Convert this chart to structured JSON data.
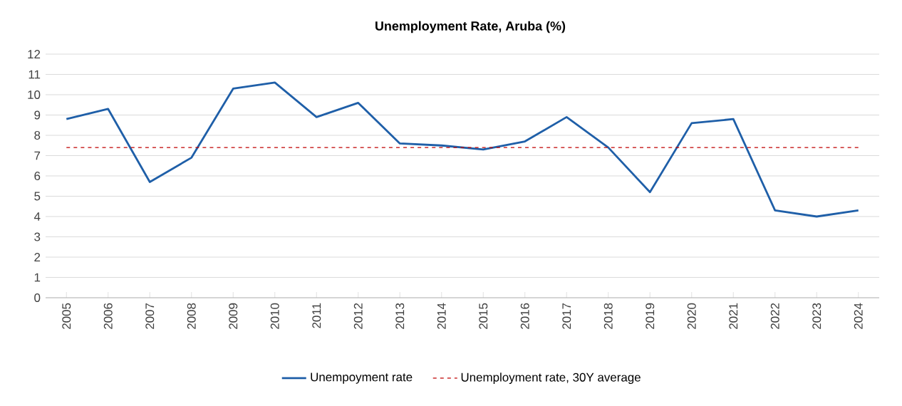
{
  "chart_data": {
    "type": "line",
    "title": "Unemployment  Rate, Aruba (%)",
    "categories": [
      "2005",
      "2006",
      "2007",
      "2008",
      "2009",
      "2010",
      "2011",
      "2012",
      "2013",
      "2014",
      "2015",
      "2016",
      "2017",
      "2018",
      "2019",
      "2020",
      "2021",
      "2022",
      "2023",
      "2024"
    ],
    "series": [
      {
        "name": "Unempoyment rate",
        "color": "#1f5fa8",
        "line_style": "solid",
        "values": [
          8.8,
          9.3,
          5.7,
          6.9,
          10.3,
          10.6,
          8.9,
          9.6,
          7.6,
          7.5,
          7.3,
          7.7,
          8.9,
          7.4,
          5.2,
          8.6,
          8.8,
          4.3,
          4.0,
          4.3
        ]
      },
      {
        "name": "Unemployment rate, 30Y average",
        "color": "#c00000",
        "line_style": "dashed",
        "values": [
          7.4,
          7.4,
          7.4,
          7.4,
          7.4,
          7.4,
          7.4,
          7.4,
          7.4,
          7.4,
          7.4,
          7.4,
          7.4,
          7.4,
          7.4,
          7.4,
          7.4,
          7.4,
          7.4,
          7.4
        ]
      }
    ],
    "ylim": [
      0,
      12
    ],
    "yticks": [
      0,
      1,
      2,
      3,
      4,
      5,
      6,
      7,
      8,
      9,
      10,
      11,
      12
    ],
    "grid": "y",
    "legend": "bottom",
    "marker": "none"
  }
}
